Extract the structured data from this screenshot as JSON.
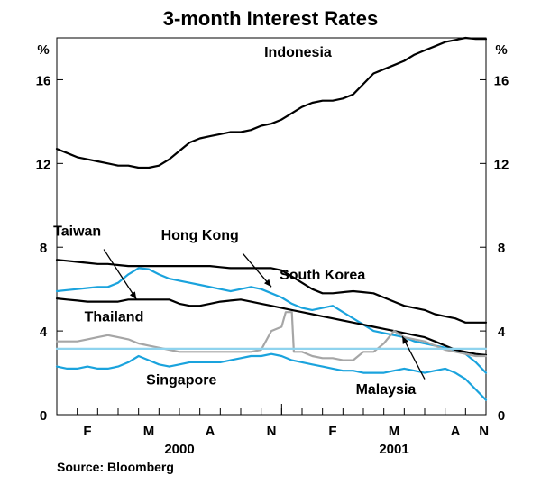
{
  "chart_data": {
    "type": "line",
    "title": "3-month Interest Rates",
    "source": "Source: Bloomberg",
    "ylabel": "%",
    "ylim": [
      0,
      18
    ],
    "yticks": [
      0,
      4,
      8,
      12,
      16
    ],
    "grid": false,
    "months": [
      "F",
      "M",
      "A",
      "N",
      "F",
      "M",
      "A",
      "N"
    ],
    "years": [
      "2000",
      "2001"
    ],
    "x_range": [
      0,
      21
    ],
    "series": [
      {
        "name": "Indonesia",
        "color": "#000000",
        "style": "solid",
        "label_at": [
          11.8,
          17.1
        ],
        "points": [
          [
            0,
            12.7
          ],
          [
            0.5,
            12.5
          ],
          [
            1,
            12.3
          ],
          [
            1.5,
            12.2
          ],
          [
            2,
            12.1
          ],
          [
            2.5,
            12.0
          ],
          [
            3,
            11.9
          ],
          [
            3.5,
            11.9
          ],
          [
            4,
            11.8
          ],
          [
            4.5,
            11.8
          ],
          [
            5,
            11.9
          ],
          [
            5.5,
            12.2
          ],
          [
            6,
            12.6
          ],
          [
            6.5,
            13.0
          ],
          [
            7,
            13.2
          ],
          [
            7.5,
            13.3
          ],
          [
            8,
            13.4
          ],
          [
            8.5,
            13.5
          ],
          [
            9,
            13.5
          ],
          [
            9.5,
            13.6
          ],
          [
            10,
            13.8
          ],
          [
            10.5,
            13.9
          ],
          [
            11,
            14.1
          ],
          [
            11.5,
            14.4
          ],
          [
            12,
            14.7
          ],
          [
            12.5,
            14.9
          ],
          [
            13,
            15.0
          ],
          [
            13.5,
            15.0
          ],
          [
            14,
            15.1
          ],
          [
            14.5,
            15.3
          ],
          [
            15,
            15.8
          ],
          [
            15.5,
            16.3
          ],
          [
            16,
            16.5
          ],
          [
            16.5,
            16.7
          ],
          [
            17,
            16.9
          ],
          [
            17.5,
            17.2
          ],
          [
            18,
            17.4
          ],
          [
            18.5,
            17.6
          ],
          [
            19,
            17.8
          ],
          [
            19.5,
            17.9
          ],
          [
            20,
            18.0
          ],
          [
            20.5,
            17.95
          ],
          [
            21,
            17.95
          ]
        ]
      },
      {
        "name": "South Korea",
        "color": "#000000",
        "style": "solid",
        "label_at": [
          13.0,
          6.45
        ],
        "points": [
          [
            0,
            7.4
          ],
          [
            0.5,
            7.35
          ],
          [
            1,
            7.3
          ],
          [
            1.5,
            7.25
          ],
          [
            2,
            7.2
          ],
          [
            2.5,
            7.2
          ],
          [
            3,
            7.15
          ],
          [
            3.5,
            7.1
          ],
          [
            4,
            7.1
          ],
          [
            4.5,
            7.1
          ],
          [
            5,
            7.1
          ],
          [
            5.5,
            7.1
          ],
          [
            6,
            7.1
          ],
          [
            6.5,
            7.1
          ],
          [
            7,
            7.1
          ],
          [
            7.5,
            7.1
          ],
          [
            8,
            7.05
          ],
          [
            8.5,
            7.0
          ],
          [
            9,
            7.0
          ],
          [
            9.5,
            7.0
          ],
          [
            10,
            7.0
          ],
          [
            10.5,
            7.0
          ],
          [
            11,
            6.9
          ],
          [
            11.5,
            6.6
          ],
          [
            12,
            6.3
          ],
          [
            12.5,
            6.0
          ],
          [
            13,
            5.8
          ],
          [
            13.5,
            5.8
          ],
          [
            14,
            5.85
          ],
          [
            14.5,
            5.9
          ],
          [
            15,
            5.85
          ],
          [
            15.5,
            5.8
          ],
          [
            16,
            5.6
          ],
          [
            16.5,
            5.4
          ],
          [
            17,
            5.2
          ],
          [
            17.5,
            5.1
          ],
          [
            18,
            5.0
          ],
          [
            18.5,
            4.8
          ],
          [
            19,
            4.7
          ],
          [
            19.5,
            4.6
          ],
          [
            20,
            4.4
          ],
          [
            20.5,
            4.4
          ],
          [
            21,
            4.4
          ]
        ]
      },
      {
        "name": "Hong Kong",
        "color": "#1aa3dd",
        "style": "solid",
        "label_at": [
          7.0,
          8.35
        ],
        "points": [
          [
            0,
            5.9
          ],
          [
            0.5,
            5.95
          ],
          [
            1,
            6.0
          ],
          [
            1.5,
            6.05
          ],
          [
            2,
            6.1
          ],
          [
            2.5,
            6.1
          ],
          [
            3,
            6.3
          ],
          [
            3.5,
            6.7
          ],
          [
            4,
            7.0
          ],
          [
            4.5,
            6.95
          ],
          [
            5,
            6.7
          ],
          [
            5.5,
            6.5
          ],
          [
            6,
            6.4
          ],
          [
            6.5,
            6.3
          ],
          [
            7,
            6.2
          ],
          [
            7.5,
            6.1
          ],
          [
            8,
            6.0
          ],
          [
            8.5,
            5.9
          ],
          [
            9,
            6.0
          ],
          [
            9.5,
            6.1
          ],
          [
            10,
            6.0
          ],
          [
            10.5,
            5.8
          ],
          [
            11,
            5.6
          ],
          [
            11.5,
            5.3
          ],
          [
            12,
            5.1
          ],
          [
            12.5,
            5.0
          ],
          [
            13,
            5.1
          ],
          [
            13.5,
            5.2
          ],
          [
            14,
            4.9
          ],
          [
            14.5,
            4.6
          ],
          [
            15,
            4.3
          ],
          [
            15.5,
            4.0
          ],
          [
            16,
            3.9
          ],
          [
            16.5,
            3.8
          ],
          [
            17,
            3.7
          ],
          [
            17.5,
            3.5
          ],
          [
            18,
            3.4
          ],
          [
            18.5,
            3.3
          ],
          [
            19,
            3.2
          ],
          [
            19.5,
            3.1
          ],
          [
            20,
            2.9
          ],
          [
            20.5,
            2.5
          ],
          [
            21,
            2.0
          ]
        ]
      },
      {
        "name": "Taiwan",
        "color": "#000000",
        "style": "solid",
        "label_at": [
          1.0,
          8.55
        ],
        "points": [
          [
            0,
            5.55
          ],
          [
            0.5,
            5.5
          ],
          [
            1,
            5.45
          ],
          [
            1.5,
            5.4
          ],
          [
            2,
            5.4
          ],
          [
            2.5,
            5.4
          ],
          [
            3,
            5.4
          ],
          [
            3.5,
            5.5
          ],
          [
            4,
            5.5
          ],
          [
            4.5,
            5.5
          ],
          [
            5,
            5.5
          ],
          [
            5.5,
            5.5
          ],
          [
            6,
            5.3
          ],
          [
            6.5,
            5.2
          ],
          [
            7,
            5.2
          ],
          [
            7.5,
            5.3
          ],
          [
            8,
            5.4
          ],
          [
            8.5,
            5.45
          ],
          [
            9,
            5.5
          ],
          [
            9.5,
            5.4
          ],
          [
            10,
            5.3
          ],
          [
            10.5,
            5.2
          ],
          [
            11,
            5.1
          ],
          [
            11.5,
            5.0
          ],
          [
            12,
            4.9
          ],
          [
            12.5,
            4.8
          ],
          [
            13,
            4.7
          ],
          [
            13.5,
            4.6
          ],
          [
            14,
            4.5
          ],
          [
            14.5,
            4.4
          ],
          [
            15,
            4.3
          ],
          [
            15.5,
            4.2
          ],
          [
            16,
            4.1
          ],
          [
            16.5,
            4.0
          ],
          [
            17,
            3.9
          ],
          [
            17.5,
            3.8
          ],
          [
            18,
            3.7
          ],
          [
            18.5,
            3.5
          ],
          [
            19,
            3.3
          ],
          [
            19.5,
            3.1
          ],
          [
            20,
            3.0
          ],
          [
            20.5,
            2.9
          ],
          [
            21,
            2.85
          ]
        ]
      },
      {
        "name": "Thailand",
        "color": "#a6a6a6",
        "style": "solid",
        "label_at": [
          2.8,
          4.45
        ],
        "points": [
          [
            0,
            3.5
          ],
          [
            0.5,
            3.5
          ],
          [
            1,
            3.5
          ],
          [
            1.5,
            3.6
          ],
          [
            2,
            3.7
          ],
          [
            2.5,
            3.8
          ],
          [
            3,
            3.7
          ],
          [
            3.5,
            3.6
          ],
          [
            4,
            3.4
          ],
          [
            4.5,
            3.3
          ],
          [
            5,
            3.2
          ],
          [
            5.5,
            3.1
          ],
          [
            6,
            3.0
          ],
          [
            6.5,
            3.0
          ],
          [
            7,
            3.0
          ],
          [
            7.5,
            3.0
          ],
          [
            8,
            3.0
          ],
          [
            8.5,
            3.0
          ],
          [
            9,
            3.0
          ],
          [
            9.5,
            3.0
          ],
          [
            10,
            3.1
          ],
          [
            10.5,
            4.0
          ],
          [
            11,
            4.2
          ],
          [
            11.2,
            4.9
          ],
          [
            11.5,
            4.9
          ],
          [
            11.6,
            3.0
          ],
          [
            12,
            3.0
          ],
          [
            12.5,
            2.8
          ],
          [
            13,
            2.7
          ],
          [
            13.5,
            2.7
          ],
          [
            14,
            2.6
          ],
          [
            14.5,
            2.6
          ],
          [
            15,
            3.0
          ],
          [
            15.5,
            3.0
          ],
          [
            16,
            3.4
          ],
          [
            16.5,
            4.0
          ],
          [
            17,
            3.7
          ],
          [
            17.5,
            3.6
          ],
          [
            18,
            3.5
          ],
          [
            18.5,
            3.3
          ],
          [
            19,
            3.1
          ],
          [
            19.5,
            3.0
          ],
          [
            20,
            2.9
          ],
          [
            20.5,
            2.8
          ],
          [
            21,
            2.8
          ]
        ]
      },
      {
        "name": "Malaysia",
        "color": "#8fd3ee",
        "style": "solid",
        "label_at": [
          16.1,
          1.0
        ],
        "points": [
          [
            0,
            3.15
          ],
          [
            21,
            3.15
          ]
        ]
      },
      {
        "name": "Singapore",
        "color": "#1aa3dd",
        "style": "solid",
        "label_at": [
          6.1,
          1.45
        ],
        "points": [
          [
            0,
            2.3
          ],
          [
            0.5,
            2.2
          ],
          [
            1,
            2.2
          ],
          [
            1.5,
            2.3
          ],
          [
            2,
            2.2
          ],
          [
            2.5,
            2.2
          ],
          [
            3,
            2.3
          ],
          [
            3.5,
            2.5
          ],
          [
            4,
            2.8
          ],
          [
            4.5,
            2.6
          ],
          [
            5,
            2.4
          ],
          [
            5.5,
            2.3
          ],
          [
            6,
            2.4
          ],
          [
            6.5,
            2.5
          ],
          [
            7,
            2.5
          ],
          [
            7.5,
            2.5
          ],
          [
            8,
            2.5
          ],
          [
            8.5,
            2.6
          ],
          [
            9,
            2.7
          ],
          [
            9.5,
            2.8
          ],
          [
            10,
            2.8
          ],
          [
            10.5,
            2.9
          ],
          [
            11,
            2.8
          ],
          [
            11.5,
            2.6
          ],
          [
            12,
            2.5
          ],
          [
            12.5,
            2.4
          ],
          [
            13,
            2.3
          ],
          [
            13.5,
            2.2
          ],
          [
            14,
            2.1
          ],
          [
            14.5,
            2.1
          ],
          [
            15,
            2.0
          ],
          [
            15.5,
            2.0
          ],
          [
            16,
            2.0
          ],
          [
            16.5,
            2.1
          ],
          [
            17,
            2.2
          ],
          [
            17.5,
            2.1
          ],
          [
            18,
            2.0
          ],
          [
            18.5,
            2.1
          ],
          [
            19,
            2.2
          ],
          [
            19.5,
            2.0
          ],
          [
            20,
            1.7
          ],
          [
            20.5,
            1.2
          ],
          [
            21,
            0.7
          ]
        ]
      }
    ],
    "arrows": [
      {
        "name": "Taiwan",
        "from": [
          2.3,
          7.9
        ],
        "to": [
          3.9,
          5.5
        ]
      },
      {
        "name": "Hong Kong",
        "from": [
          9.1,
          7.7
        ],
        "to": [
          10.5,
          6.1
        ]
      },
      {
        "name": "Malaysia",
        "from": [
          18.0,
          1.7
        ],
        "to": [
          16.9,
          3.75
        ]
      }
    ]
  }
}
